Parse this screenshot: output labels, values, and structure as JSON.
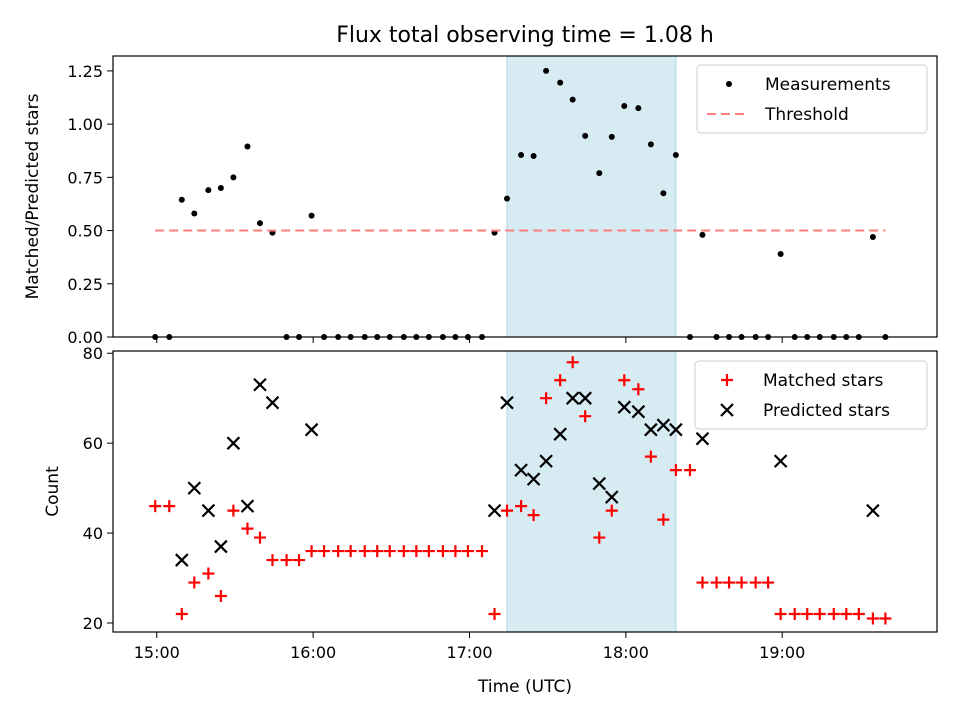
{
  "title": "Flux total observing time = 1.08 h",
  "xlabel": "Time (UTC)",
  "xticks": [
    "15:00",
    "16:00",
    "17:00",
    "18:00",
    "19:00"
  ],
  "chart_data": [
    {
      "type": "scatter",
      "panel": "top",
      "ylabel": "Matched/Predicted stars",
      "ylim": [
        0,
        1.32
      ],
      "yticks": [
        "0.00",
        "0.25",
        "0.50",
        "0.75",
        "1.00",
        "1.25"
      ],
      "x_unit": "hours UTC",
      "shaded_span": [
        17.24,
        18.32
      ],
      "shade_color": "#add8e6",
      "legend": "top-right",
      "series": [
        {
          "name": "Measurements",
          "marker": "dot",
          "color": "#000000",
          "x": [
            14.99,
            15.08,
            15.16,
            15.24,
            15.33,
            15.41,
            15.49,
            15.58,
            15.66,
            15.74,
            15.83,
            15.91,
            15.99,
            16.07,
            16.16,
            16.24,
            16.33,
            16.41,
            16.49,
            16.58,
            16.66,
            16.74,
            16.83,
            16.91,
            16.99,
            17.08,
            17.16,
            17.24,
            17.33,
            17.41,
            17.49,
            17.58,
            17.66,
            17.74,
            17.83,
            17.91,
            17.99,
            18.08,
            18.16,
            18.24,
            18.32,
            18.41,
            18.49,
            18.58,
            18.66,
            18.74,
            18.83,
            18.91,
            18.99,
            19.08,
            19.16,
            19.24,
            19.33,
            19.41,
            19.49,
            19.58,
            19.66
          ],
          "y": [
            0,
            0,
            0.645,
            0.58,
            0.69,
            0.7,
            0.75,
            0.895,
            0.535,
            0.49,
            0,
            0,
            0.57,
            0,
            0,
            0,
            0,
            0,
            0,
            0,
            0,
            0,
            0,
            0,
            0,
            0,
            0.49,
            0.65,
            0.855,
            0.85,
            1.25,
            1.195,
            1.115,
            0.945,
            0.77,
            0.94,
            1.085,
            1.075,
            0.905,
            0.675,
            0.855,
            0,
            0.48,
            0,
            0,
            0,
            0,
            0,
            0.39,
            0,
            0,
            0,
            0,
            0,
            0,
            0.47,
            0
          ]
        },
        {
          "name": "Threshold",
          "marker": "dashed-line",
          "color": "#ff7f7f",
          "x": [
            14.99,
            19.66
          ],
          "y": [
            0.5,
            0.5
          ]
        }
      ]
    },
    {
      "type": "scatter",
      "panel": "bottom",
      "ylabel": "Count",
      "ylim": [
        18,
        80.5
      ],
      "yticks": [
        "20",
        "40",
        "60",
        "80"
      ],
      "x_unit": "hours UTC",
      "shaded_span": [
        17.24,
        18.32
      ],
      "shade_color": "#add8e6",
      "legend": "top-right",
      "series": [
        {
          "name": "Matched stars",
          "marker": "plus",
          "color": "#ff0000",
          "x": [
            14.99,
            15.08,
            15.16,
            15.24,
            15.33,
            15.41,
            15.49,
            15.58,
            15.66,
            15.74,
            15.83,
            15.91,
            15.99,
            16.07,
            16.16,
            16.24,
            16.33,
            16.41,
            16.49,
            16.58,
            16.66,
            16.74,
            16.83,
            16.91,
            16.99,
            17.08,
            17.16,
            17.24,
            17.33,
            17.41,
            17.49,
            17.58,
            17.66,
            17.74,
            17.83,
            17.91,
            17.99,
            18.08,
            18.16,
            18.24,
            18.32,
            18.41,
            18.49,
            18.58,
            18.66,
            18.74,
            18.83,
            18.91,
            18.99,
            19.08,
            19.16,
            19.24,
            19.33,
            19.41,
            19.49,
            19.58,
            19.66
          ],
          "y": [
            46,
            46,
            22,
            29,
            31,
            26,
            45,
            41,
            39,
            34,
            34,
            34,
            36,
            36,
            36,
            36,
            36,
            36,
            36,
            36,
            36,
            36,
            36,
            36,
            36,
            36,
            22,
            45,
            46,
            44,
            70,
            74,
            78,
            66,
            39,
            45,
            74,
            72,
            57,
            43,
            54,
            54,
            29,
            29,
            29,
            29,
            29,
            29,
            22,
            22,
            22,
            22,
            22,
            22,
            22,
            21,
            21
          ]
        },
        {
          "name": "Predicted stars",
          "marker": "x",
          "color": "#000000",
          "x": [
            15.16,
            15.24,
            15.33,
            15.41,
            15.49,
            15.58,
            15.66,
            15.74,
            15.99,
            17.16,
            17.24,
            17.33,
            17.41,
            17.49,
            17.58,
            17.66,
            17.74,
            17.83,
            17.91,
            17.99,
            18.08,
            18.16,
            18.24,
            18.32,
            18.49,
            18.99,
            19.58
          ],
          "y": [
            34,
            50,
            45,
            37,
            60,
            46,
            73,
            69,
            63,
            45,
            69,
            54,
            52,
            56,
            62,
            70,
            70,
            51,
            48,
            68,
            67,
            63,
            64,
            63,
            61,
            56,
            45
          ]
        }
      ]
    }
  ]
}
